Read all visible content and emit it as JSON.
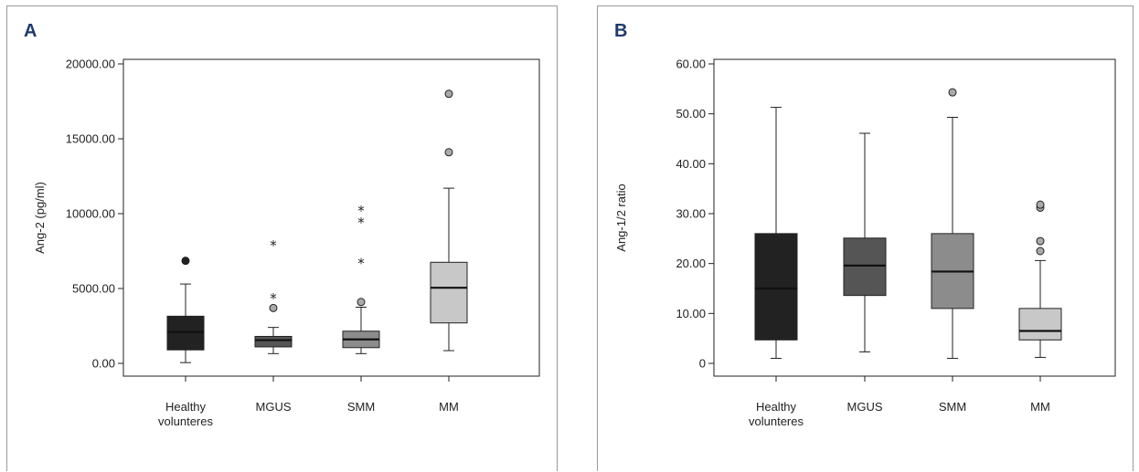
{
  "chart_data": [
    {
      "panel": "A",
      "type": "box",
      "ylabel": "Ang-2 (pg/ml)",
      "ylim": [
        0,
        20000
      ],
      "yticks": [
        "0.00",
        "5000.00",
        "10000.00",
        "15000.00",
        "20000.00"
      ],
      "categories": [
        [
          "Healthy",
          "volunteres"
        ],
        [
          "MGUS"
        ],
        [
          "SMM"
        ],
        [
          "MM"
        ]
      ],
      "boxes": [
        {
          "name": "Healthy volunteres",
          "fill": "#222222",
          "whisker_low": 50,
          "q1": 900,
          "median": 2100,
          "q3": 3150,
          "whisker_high": 5300,
          "outliers": [
            6850
          ],
          "extremes": []
        },
        {
          "name": "MGUS",
          "fill": "#555555",
          "whisker_low": 650,
          "q1": 1100,
          "median": 1550,
          "q3": 1800,
          "whisker_high": 2400,
          "outliers": [
            3700
          ],
          "extremes": [
            4450,
            8000
          ]
        },
        {
          "name": "SMM",
          "fill": "#8c8c8c",
          "whisker_low": 650,
          "q1": 1050,
          "median": 1600,
          "q3": 2150,
          "whisker_high": 3750,
          "outliers": [
            4100
          ],
          "extremes": [
            6800,
            9500,
            10300
          ]
        },
        {
          "name": "MM",
          "fill": "#c8c8c8",
          "whisker_low": 850,
          "q1": 2700,
          "median": 5050,
          "q3": 6750,
          "whisker_high": 11700,
          "outliers": [
            14100,
            18000
          ],
          "extremes": []
        }
      ]
    },
    {
      "panel": "B",
      "type": "box",
      "ylabel": "Ang-1/2 ratio",
      "ylim": [
        0,
        60
      ],
      "yticks": [
        "0",
        "10.00",
        "20.00",
        "30.00",
        "40.00",
        "50.00",
        "60.00"
      ],
      "categories": [
        [
          "Healthy",
          "volunteres"
        ],
        [
          "MGUS"
        ],
        [
          "SMM"
        ],
        [
          "MM"
        ]
      ],
      "boxes": [
        {
          "name": "Healthy volunteres",
          "fill": "#222222",
          "whisker_low": 1,
          "q1": 4.7,
          "median": 15,
          "q3": 26,
          "whisker_high": 51.3,
          "outliers": [],
          "extremes": []
        },
        {
          "name": "MGUS",
          "fill": "#555555",
          "whisker_low": 2.3,
          "q1": 13.6,
          "median": 19.6,
          "q3": 25.1,
          "whisker_high": 46.1,
          "outliers": [],
          "extremes": []
        },
        {
          "name": "SMM",
          "fill": "#8c8c8c",
          "whisker_low": 1,
          "q1": 11,
          "median": 18.4,
          "q3": 26,
          "whisker_high": 49.3,
          "outliers": [
            54.3
          ],
          "extremes": []
        },
        {
          "name": "MM",
          "fill": "#c8c8c8",
          "whisker_low": 1.2,
          "q1": 4.7,
          "median": 6.5,
          "q3": 11,
          "whisker_high": 20.6,
          "outliers": [
            22.5,
            24.5,
            31.2,
            31.8
          ],
          "extremes": []
        }
      ]
    }
  ]
}
